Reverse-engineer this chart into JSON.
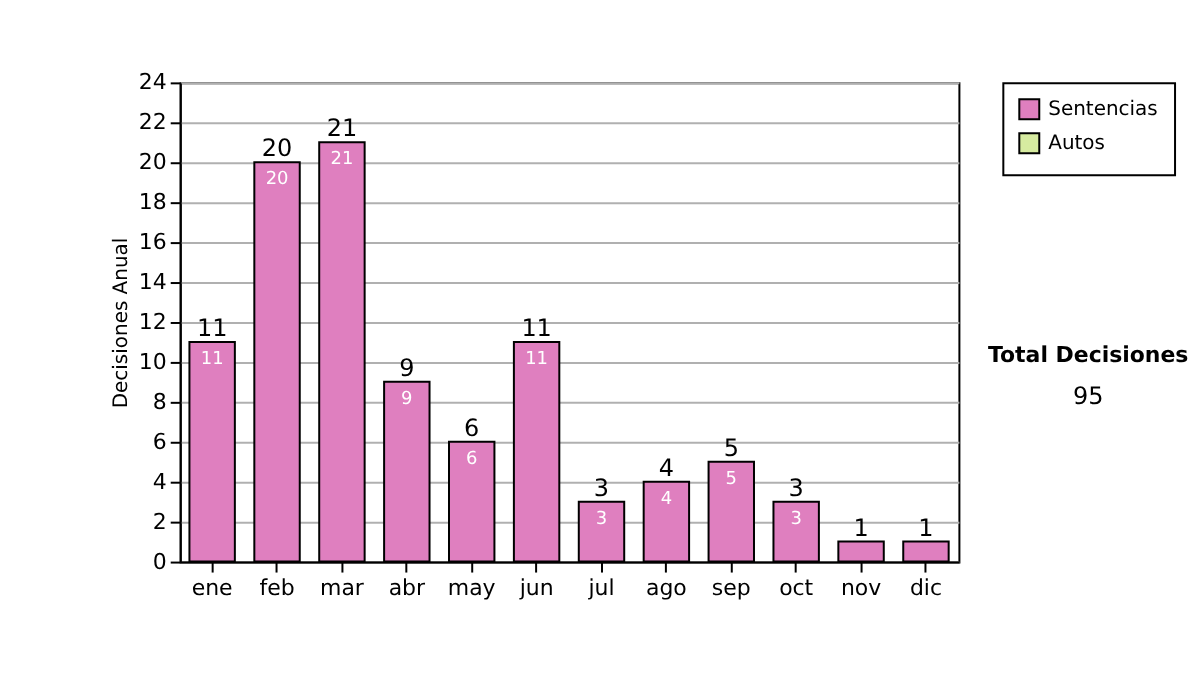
{
  "chart_data": {
    "type": "bar",
    "stacked": true,
    "ylabel": "Decisiones Anual",
    "categories": [
      "ene",
      "feb",
      "mar",
      "abr",
      "may",
      "jun",
      "jul",
      "ago",
      "sep",
      "oct",
      "nov",
      "dic"
    ],
    "series": [
      {
        "name": "Sentencias",
        "color": "#df7fbf",
        "values": [
          11,
          20,
          21,
          9,
          6,
          11,
          3,
          4,
          5,
          3,
          1,
          1
        ],
        "value_labels": [
          "11",
          "20",
          "21",
          "9",
          "6",
          "11",
          "3",
          "4",
          "5",
          "3",
          null,
          null
        ]
      },
      {
        "name": "Autos",
        "color": "#d6eba0",
        "values": [
          0,
          0,
          0,
          0,
          0,
          0,
          0,
          0,
          0,
          0,
          0,
          0
        ]
      }
    ],
    "totals": [
      "11",
      "20",
      "21",
      "9",
      "6",
      "11",
      "3",
      "4",
      "5",
      "3",
      "1",
      "1"
    ],
    "ylim": [
      0,
      24
    ],
    "yticks": [
      0,
      2,
      4,
      6,
      8,
      10,
      12,
      14,
      16,
      18,
      20,
      22,
      24
    ],
    "grid": "y",
    "legend": "right",
    "annotations": [
      "Total Decisiones",
      "95"
    ]
  }
}
